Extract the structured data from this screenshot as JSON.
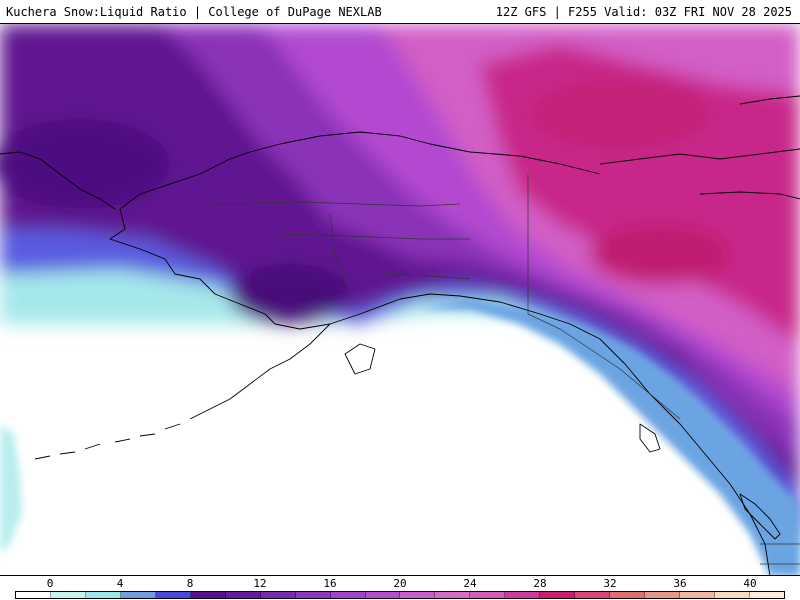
{
  "header": {
    "left_title": "Kuchera Snow:Liquid Ratio | College of DuPage NEXLAB",
    "right_title": "12Z GFS | F255 Valid: 03Z FRI NOV 28 2025"
  },
  "map": {
    "region": "Alaska and Northeast Pacific",
    "variable": "Kuchera Snow:Liquid Ratio"
  },
  "colorbar": {
    "ticks": [
      "0",
      "4",
      "8",
      "12",
      "16",
      "20",
      "24",
      "28",
      "32",
      "36",
      "40"
    ],
    "colors": [
      "#ffffff",
      "#c8f2f0",
      "#9be5e8",
      "#6f9fe0",
      "#4a4ad8",
      "#5a0f8c",
      "#6a1a9c",
      "#7a2aac",
      "#8e36be",
      "#a444c8",
      "#b84ece",
      "#cc5ed0",
      "#d86ac8",
      "#d45cb8",
      "#cc3c9e",
      "#c8206e",
      "#d8487a",
      "#e07070",
      "#e8968a",
      "#f0b8a0",
      "#f8d8c0",
      "#fcecdc"
    ]
  }
}
